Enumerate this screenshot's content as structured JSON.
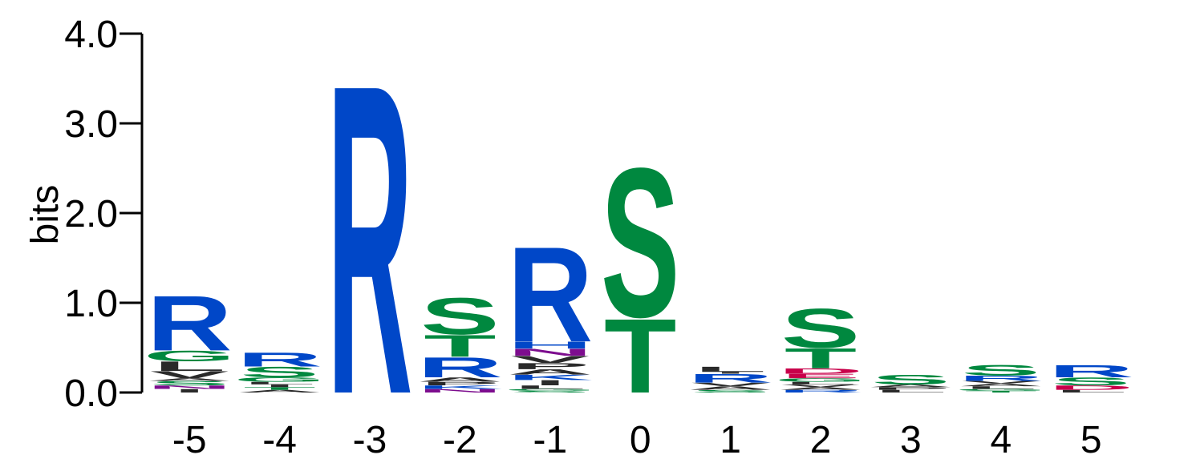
{
  "chart_data": {
    "type": "sequence-logo",
    "ylabel": "bits",
    "ylim": [
      0,
      4
    ],
    "yticks": [
      "0.0",
      "1.0",
      "2.0",
      "3.0",
      "4.0"
    ],
    "positions": [
      {
        "label": "-5",
        "letters": [
          {
            "aa": "I",
            "bits": 0.04
          },
          {
            "aa": "N",
            "bits": 0.04
          },
          {
            "aa": "S",
            "bits": 0.05
          },
          {
            "aa": "A",
            "bits": 0.03
          },
          {
            "aa": "V",
            "bits": 0.08
          },
          {
            "aa": "L",
            "bits": 0.11
          },
          {
            "aa": "G",
            "bits": 0.12
          },
          {
            "aa": "R",
            "bits": 0.63
          }
        ]
      },
      {
        "label": "-4",
        "letters": [
          {
            "aa": "A",
            "bits": 0.03
          },
          {
            "aa": "T",
            "bits": 0.03
          },
          {
            "aa": "I",
            "bits": 0.03
          },
          {
            "aa": "L",
            "bits": 0.03
          },
          {
            "aa": "G",
            "bits": 0.05
          },
          {
            "aa": "S",
            "bits": 0.12
          },
          {
            "aa": "R",
            "bits": 0.16
          }
        ]
      },
      {
        "label": "-3",
        "letters": [
          {
            "aa": "R",
            "bits": 3.55
          }
        ]
      },
      {
        "label": "-2",
        "letters": [
          {
            "aa": "N",
            "bits": 0.04
          },
          {
            "aa": "K",
            "bits": 0.04
          },
          {
            "aa": "P",
            "bits": 0.04
          },
          {
            "aa": "A",
            "bits": 0.05
          },
          {
            "aa": "R",
            "bits": 0.23
          },
          {
            "aa": "T",
            "bits": 0.25
          },
          {
            "aa": "S",
            "bits": 0.42
          }
        ]
      },
      {
        "label": "-1",
        "letters": [
          {
            "aa": "S",
            "bits": 0.02
          },
          {
            "aa": "G",
            "bits": 0.02
          },
          {
            "aa": "L",
            "bits": 0.04
          },
          {
            "aa": "I",
            "bits": 0.06
          },
          {
            "aa": "K",
            "bits": 0.06
          },
          {
            "aa": "A",
            "bits": 0.06
          },
          {
            "aa": "P",
            "bits": 0.07
          },
          {
            "aa": "V",
            "bits": 0.08
          },
          {
            "aa": "N",
            "bits": 0.08
          },
          {
            "aa": "H",
            "bits": 0.08
          },
          {
            "aa": "R",
            "bits": 1.09
          }
        ]
      },
      {
        "label": "0",
        "letters": [
          {
            "aa": "T",
            "bits": 0.85
          },
          {
            "aa": "S",
            "bits": 1.71
          }
        ]
      },
      {
        "label": "1",
        "letters": [
          {
            "aa": "S",
            "bits": 0.03
          },
          {
            "aa": "A",
            "bits": 0.04
          },
          {
            "aa": "V",
            "bits": 0.04
          },
          {
            "aa": "R",
            "bits": 0.1
          },
          {
            "aa": "I",
            "bits": 0.02
          },
          {
            "aa": "L",
            "bits": 0.06
          }
        ]
      },
      {
        "label": "2",
        "letters": [
          {
            "aa": "R",
            "bits": 0.03
          },
          {
            "aa": "A",
            "bits": 0.03
          },
          {
            "aa": "V",
            "bits": 0.03
          },
          {
            "aa": "L",
            "bits": 0.03
          },
          {
            "aa": "G",
            "bits": 0.04
          },
          {
            "aa": "E",
            "bits": 0.05
          },
          {
            "aa": "D",
            "bits": 0.06
          },
          {
            "aa": "T",
            "bits": 0.23
          },
          {
            "aa": "S",
            "bits": 0.45
          }
        ]
      },
      {
        "label": "3",
        "letters": [
          {
            "aa": "L",
            "bits": 0.03
          },
          {
            "aa": "P",
            "bits": 0.03
          },
          {
            "aa": "A",
            "bits": 0.03
          },
          {
            "aa": "S",
            "bits": 0.11
          }
        ]
      },
      {
        "label": "4",
        "letters": [
          {
            "aa": "T",
            "bits": 0.02
          },
          {
            "aa": "G",
            "bits": 0.02
          },
          {
            "aa": "L",
            "bits": 0.03
          },
          {
            "aa": "A",
            "bits": 0.03
          },
          {
            "aa": "V",
            "bits": 0.03
          },
          {
            "aa": "R",
            "bits": 0.06
          },
          {
            "aa": "S",
            "bits": 0.12
          }
        ]
      },
      {
        "label": "5",
        "letters": [
          {
            "aa": "L",
            "bits": 0.03
          },
          {
            "aa": "D",
            "bits": 0.05
          },
          {
            "aa": "S",
            "bits": 0.09
          },
          {
            "aa": "R",
            "bits": 0.14
          }
        ]
      }
    ]
  },
  "colors": {
    "basic": "#0047c8",
    "polar": "#00883f",
    "hydrophobic": "#2a2a2a",
    "acidic": "#c8004a",
    "amide": "#7d0d8e"
  },
  "letter_groups": {
    "basic": [
      "R",
      "K",
      "H"
    ],
    "polar": [
      "S",
      "T",
      "G",
      "Y",
      "C"
    ],
    "acidic": [
      "D",
      "E"
    ],
    "amide": [
      "N",
      "Q"
    ],
    "hydrophobic": [
      "A",
      "V",
      "L",
      "I",
      "P",
      "W",
      "F",
      "M"
    ]
  }
}
